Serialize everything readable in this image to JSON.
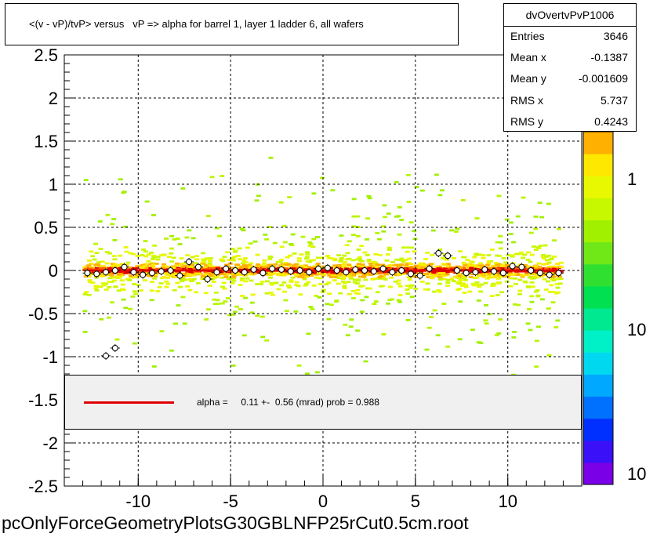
{
  "title": "<(v - vP)/tvP> versus   vP => alpha for barrel 1, layer 1 ladder 6, all wafers",
  "stats": {
    "name": "dvOvertvPvP1006",
    "rows": [
      {
        "key": "Entries",
        "value": "3646"
      },
      {
        "key": "Mean x",
        "value": "-0.1387"
      },
      {
        "key": "Mean y",
        "value": "-0.001609"
      },
      {
        "key": "RMS x",
        "value": "5.737"
      },
      {
        "key": "RMS y",
        "value": "0.4243"
      }
    ]
  },
  "fit": {
    "text": "alpha =     0.11 +-  0.56 (mrad) prob = 0.988",
    "line_color": "#e00000"
  },
  "footer": "pcOnlyForceGeometryPlotsG30GBLNFP25rCut0.5cm.root",
  "chart_data": {
    "type": "heatmap",
    "title": "<(v - vP)/tvP> versus   vP => alpha for barrel 1, layer 1 ladder 6, all wafers",
    "xlim": [
      -14,
      14
    ],
    "ylim": [
      -2.5,
      2.5
    ],
    "x_ticks": [
      -10,
      -5,
      0,
      5,
      10
    ],
    "x_tick_labels": [
      "-10",
      "-5",
      "0",
      "5",
      "10"
    ],
    "y_ticks": [
      -2.5,
      -2,
      -1.5,
      -1,
      -0.5,
      0,
      0.5,
      1,
      1.5,
      2,
      2.5
    ],
    "y_tick_labels": [
      "-2.5",
      "-2",
      "-1.5",
      "-1",
      "-0.5",
      "0",
      "0.5",
      "1",
      "1.5",
      "2",
      "2.5"
    ],
    "grid": true,
    "color_scale": "log",
    "colorbar_labels": [
      "1",
      "10",
      "10"
    ],
    "palette": [
      "#7a00e8",
      "#3a10f8",
      "#0030ff",
      "#0070ff",
      "#00a8ff",
      "#00d8f0",
      "#00f0c8",
      "#00e890",
      "#00e050",
      "#30e030",
      "#70e818",
      "#a0f000",
      "#c8f800",
      "#e8f800",
      "#ffe800",
      "#ffb000"
    ],
    "profile_points": [
      {
        "x": -12.75,
        "y": -0.03
      },
      {
        "x": -12.25,
        "y": -0.04
      },
      {
        "x": -11.75,
        "y": -0.02
      },
      {
        "x": -11.25,
        "y": 0.0
      },
      {
        "x": -10.75,
        "y": 0.04
      },
      {
        "x": -10.25,
        "y": -0.02
      },
      {
        "x": -9.75,
        "y": -0.05
      },
      {
        "x": -9.25,
        "y": -0.03
      },
      {
        "x": -8.75,
        "y": -0.01
      },
      {
        "x": -8.25,
        "y": 0.0
      },
      {
        "x": -7.75,
        "y": -0.06
      },
      {
        "x": -7.25,
        "y": 0.1
      },
      {
        "x": -6.75,
        "y": 0.04
      },
      {
        "x": -6.25,
        "y": -0.1
      },
      {
        "x": -5.75,
        "y": -0.02
      },
      {
        "x": -5.25,
        "y": 0.02
      },
      {
        "x": -4.75,
        "y": 0.0
      },
      {
        "x": -4.25,
        "y": -0.02
      },
      {
        "x": -3.75,
        "y": 0.01
      },
      {
        "x": -3.25,
        "y": -0.03
      },
      {
        "x": -2.75,
        "y": 0.02
      },
      {
        "x": -2.25,
        "y": 0.01
      },
      {
        "x": -1.75,
        "y": -0.01
      },
      {
        "x": -1.25,
        "y": 0.0
      },
      {
        "x": -0.75,
        "y": -0.02
      },
      {
        "x": -0.25,
        "y": 0.02
      },
      {
        "x": 0.25,
        "y": 0.03
      },
      {
        "x": 0.75,
        "y": 0.0
      },
      {
        "x": 1.25,
        "y": -0.02
      },
      {
        "x": 1.75,
        "y": 0.01
      },
      {
        "x": 2.25,
        "y": 0.0
      },
      {
        "x": 2.75,
        "y": -0.01
      },
      {
        "x": 3.25,
        "y": 0.02
      },
      {
        "x": 3.75,
        "y": -0.02
      },
      {
        "x": 4.25,
        "y": 0.0
      },
      {
        "x": 4.75,
        "y": -0.04
      },
      {
        "x": 5.25,
        "y": -0.06
      },
      {
        "x": 5.75,
        "y": 0.02
      },
      {
        "x": 6.25,
        "y": 0.2
      },
      {
        "x": 6.75,
        "y": 0.17
      },
      {
        "x": 7.25,
        "y": 0.0
      },
      {
        "x": 7.75,
        "y": -0.03
      },
      {
        "x": 8.25,
        "y": -0.02
      },
      {
        "x": 8.75,
        "y": 0.01
      },
      {
        "x": 9.25,
        "y": -0.01
      },
      {
        "x": 9.75,
        "y": -0.03
      },
      {
        "x": 10.25,
        "y": 0.05
      },
      {
        "x": 10.75,
        "y": 0.04
      },
      {
        "x": 11.25,
        "y": 0.0
      },
      {
        "x": 11.75,
        "y": -0.03
      },
      {
        "x": 12.25,
        "y": -0.05
      },
      {
        "x": 12.75,
        "y": -0.03
      },
      {
        "x": -11.75,
        "y": -0.99
      },
      {
        "x": -11.25,
        "y": -0.9
      }
    ],
    "fit_line": {
      "x": [
        -12.75,
        12.75
      ],
      "y": [
        0.0,
        0.0
      ]
    }
  }
}
